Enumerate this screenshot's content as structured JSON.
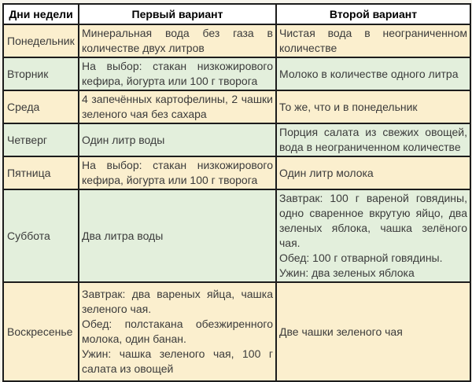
{
  "colors": {
    "page_bg": "#f6f4ec",
    "cream_row_bg": "#fbefce",
    "green_row_bg": "#e3efdc",
    "header_bg": "#ffffff",
    "border": "#1c1c1c",
    "body_text": "#3b3b3b",
    "header_text": "#000000"
  },
  "table": {
    "headers": [
      "Дни недели",
      "Первый вариант",
      "Второй вариант"
    ],
    "rows": [
      {
        "day": "Понедельник",
        "shade": "cream",
        "variant1": [
          "Минеральная вода без газа в количестве двух литров"
        ],
        "variant2": [
          "Чистая вода в неограниченном количестве"
        ]
      },
      {
        "day": "Вторник",
        "shade": "green",
        "variant1": [
          "На выбор: стакан низкожирового кефира, йогурта или 100 г творога"
        ],
        "variant2": [
          "Молоко в количестве одного литра"
        ]
      },
      {
        "day": "Среда",
        "shade": "cream",
        "variant1": [
          "4 запечённых картофелины, 2 чашки зеленого чая без сахара"
        ],
        "variant2": [
          "То же, что и в понедельник"
        ]
      },
      {
        "day": "Четверг",
        "shade": "green",
        "variant1": [
          "Один литр воды"
        ],
        "variant2": [
          "Порция салата из свежих овощей, вода в неограниченном количестве"
        ]
      },
      {
        "day": "Пятница",
        "shade": "cream",
        "variant1": [
          "На выбор: стакан низкожирового кефира, йогурта или 100 г творога"
        ],
        "variant2": [
          "Один литр молока"
        ]
      },
      {
        "day": "Суббота",
        "shade": "green",
        "variant1": [
          "Два литра воды"
        ],
        "variant2": [
          "Завтрак: 100 г вареной говядины, одно сваренное вкрутую яйцо, два зеленых яблока, чашка зелёного чая.",
          "Обед: 100 г отварной говядины.",
          "Ужин: два зеленых яблока"
        ]
      },
      {
        "day": "Воскресенье",
        "shade": "cream",
        "variant1": [
          "Завтрак: два вареных яйца, чашка зеленого чая.",
          "Обед: полстакана обезжиренного молока, один банан.",
          "Ужин: чашка зеленого чая, 100 г салата из овощей"
        ],
        "variant2": [
          "Две чашки зеленого чая"
        ]
      }
    ]
  }
}
